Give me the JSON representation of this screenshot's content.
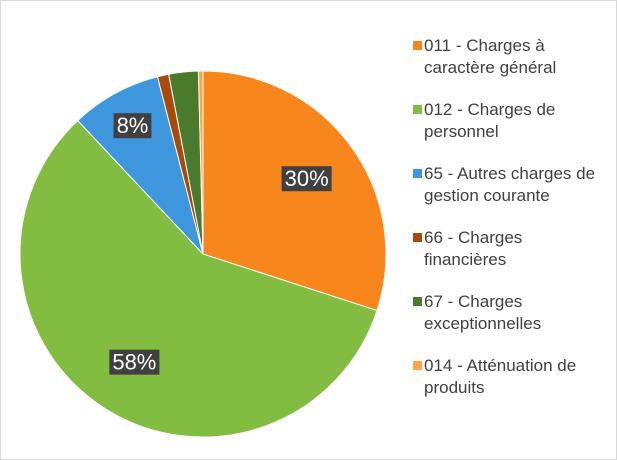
{
  "chart_data": {
    "type": "pie",
    "categories": [
      "011 - Charges à caractère général",
      "012 - Charges de personnel",
      "65 - Autres charges de gestion courante",
      "66 - Charges financières",
      "67 - Charges exceptionnelles",
      "014 - Atténuation de produits"
    ],
    "values": [
      30,
      58,
      8,
      1,
      2.6,
      0.4
    ],
    "value_labels": [
      "30%",
      "58%",
      "8%",
      null,
      null,
      null
    ],
    "colors": [
      "#f7861c",
      "#82bc41",
      "#3e97dc",
      "#a84a0c",
      "#4a7a2c",
      "#f9a54a"
    ],
    "legend": "right"
  }
}
